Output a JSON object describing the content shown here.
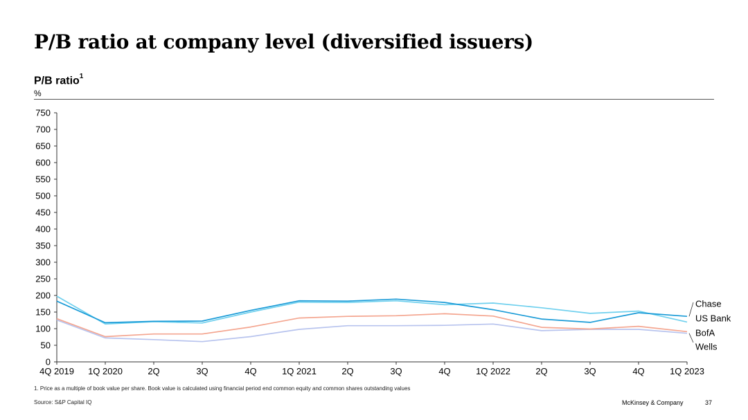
{
  "page": {
    "title": "P/B ratio at company level (diversified issuers)",
    "subtitle": "P/B ratio",
    "subtitle_sup": "1",
    "unit": "%",
    "footnote": "1. Price as a multiple of book value per share. Book value is calculated using financial period end common equity and common shares outstanding values",
    "source": "Source: S&P Capital IQ",
    "brand": "McKinsey & Company",
    "page_number": "37"
  },
  "chart_data": {
    "type": "line",
    "categories": [
      "4Q 2019",
      "1Q 2020",
      "2Q",
      "3Q",
      "4Q",
      "1Q 2021",
      "2Q",
      "3Q",
      "4Q",
      "1Q 2022",
      "2Q",
      "3Q",
      "4Q",
      "1Q 2023"
    ],
    "ylim": [
      0,
      750
    ],
    "yticks": [
      0,
      50,
      100,
      150,
      200,
      250,
      300,
      350,
      400,
      450,
      500,
      550,
      600,
      650,
      700,
      750
    ],
    "grid": false,
    "legend": "right-end labels",
    "series": [
      {
        "name": "Chase",
        "color": "#1a9bd7",
        "values": [
          183,
          118,
          122,
          123,
          155,
          184,
          183,
          189,
          179,
          157,
          129,
          119,
          148,
          137
        ]
      },
      {
        "name": "US Bank",
        "color": "#6fd0ee",
        "values": [
          198,
          114,
          121,
          117,
          150,
          180,
          179,
          184,
          172,
          177,
          163,
          146,
          153,
          120
        ]
      },
      {
        "name": "BofA",
        "color": "#f4a58f",
        "values": [
          130,
          76,
          84,
          84,
          105,
          132,
          137,
          139,
          145,
          138,
          104,
          99,
          107,
          91
        ]
      },
      {
        "name": "Wells",
        "color": "#b7c3ee",
        "values": [
          126,
          72,
          67,
          61,
          76,
          98,
          109,
          109,
          110,
          114,
          94,
          98,
          98,
          86
        ]
      }
    ]
  }
}
